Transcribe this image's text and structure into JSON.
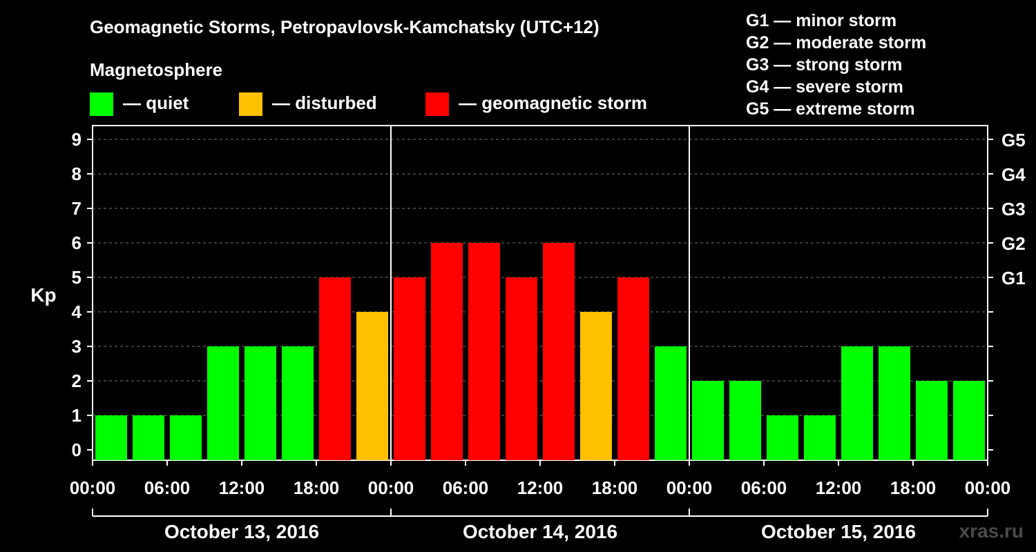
{
  "title": "Geomagnetic Storms, Petropavlovsk-Kamchatsky (UTC+12)",
  "legend": {
    "heading": "Magnetosphere",
    "items": [
      {
        "label": "— quiet",
        "color": "#00ff00"
      },
      {
        "label": "— disturbed",
        "color": "#ffc000"
      },
      {
        "label": "— geomagnetic storm",
        "color": "#ff0000"
      }
    ]
  },
  "storm_scale": [
    "G1 — minor storm",
    "G2 — moderate storm",
    "G3 — strong storm",
    "G4 — severe storm",
    "G5 — extreme storm"
  ],
  "watermark": "xras.ru",
  "chart_data": {
    "type": "bar",
    "ylabel": "Kp",
    "ylim": [
      0,
      9
    ],
    "yticks": [
      "0",
      "1",
      "2",
      "3",
      "4",
      "5",
      "6",
      "7",
      "8",
      "9"
    ],
    "right_axis_labels": [
      {
        "value": 5,
        "label": "G1"
      },
      {
        "value": 6,
        "label": "G2"
      },
      {
        "value": 7,
        "label": "G3"
      },
      {
        "value": 8,
        "label": "G4"
      },
      {
        "value": 9,
        "label": "G5"
      }
    ],
    "x_tick_labels": [
      "00:00",
      "06:00",
      "12:00",
      "18:00",
      "00:00",
      "06:00",
      "12:00",
      "18:00",
      "00:00",
      "06:00",
      "12:00",
      "18:00",
      "00:00"
    ],
    "days": [
      "October 13, 2016",
      "October 14, 2016",
      "October 15, 2016"
    ],
    "interval_hours": 3,
    "values": [
      1,
      1,
      1,
      3,
      3,
      3,
      5,
      4,
      5,
      6,
      6,
      5,
      6,
      4,
      5,
      3,
      2,
      2,
      1,
      1,
      3,
      3,
      2,
      2
    ],
    "colors": {
      "quiet": "#00ff00",
      "disturbed": "#ffc000",
      "storm": "#ff0000"
    },
    "grid": "dashed horizontal"
  }
}
